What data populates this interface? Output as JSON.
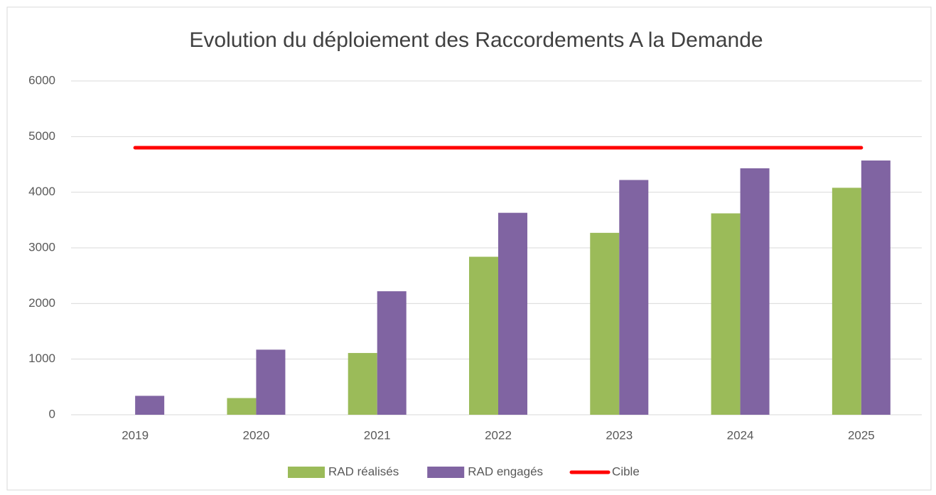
{
  "chart_data": {
    "type": "bar",
    "title": "Evolution du déploiement des Raccordements A la Demande",
    "categories": [
      "2019",
      "2020",
      "2021",
      "2022",
      "2023",
      "2024",
      "2025"
    ],
    "series": [
      {
        "name": "RAD réalisés",
        "color": "#9bbb59",
        "values": [
          0,
          300,
          1110,
          2840,
          3270,
          3620,
          4080
        ]
      },
      {
        "name": "RAD engagés",
        "color": "#8064a2",
        "values": [
          340,
          1170,
          2220,
          3630,
          4220,
          4430,
          4570
        ]
      },
      {
        "name": "Cible",
        "type": "line",
        "color": "#ff0000",
        "values": [
          4800,
          4800,
          4800,
          4800,
          4800,
          4800,
          4800
        ]
      }
    ],
    "ylim": [
      0,
      6000
    ],
    "yticks": [
      0,
      1000,
      2000,
      3000,
      4000,
      5000,
      6000
    ],
    "grid": true,
    "legend": "bottom"
  }
}
